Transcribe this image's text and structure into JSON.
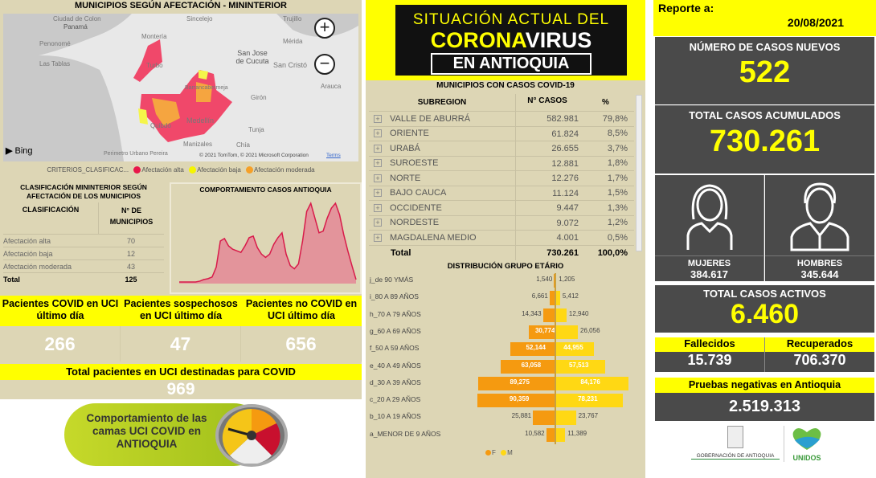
{
  "map": {
    "title": "MUNICIPIOS SEGÚN AFECTACIÓN - MININTERIOR",
    "labels": [
      "Ciudad de Colon",
      "Panamá",
      "Penonomé",
      "Las Tablas",
      "Sincelejo",
      "Montería",
      "Turbo",
      "San Jose de Cucuta",
      "San Cristó",
      "Mérida",
      "Trujillo",
      "Arauca",
      "Girón",
      "Tunja",
      "Quibdó",
      "Medellín",
      "Manizales",
      "Perimetro Urbano Pereira",
      "Chía",
      "Barrancabermeja"
    ],
    "attribution": "© 2021 TomTom, © 2021 Microsoft Corporation",
    "terms": "Terms",
    "bing": "Bing",
    "zoom_in": "+",
    "zoom_out": "−",
    "legend": {
      "title": "CRITERIOS_CLASIFICAC...",
      "items": [
        {
          "label": "Afectación alta",
          "color": "#e8174a"
        },
        {
          "label": "Afectación baja",
          "color": "#f5f500"
        },
        {
          "label": "Afectación moderada",
          "color": "#f5a028"
        }
      ]
    }
  },
  "classification": {
    "title": "CLASIFICACIÓN MININTERIOR SEGÚN AFECTACIÓN DE LOS MUNICIPIOS",
    "col1": "CLASIFICACIÓN",
    "col2": "N° DE MUNICIPIOS",
    "rows": [
      {
        "label": "Afectación alta",
        "value": "70"
      },
      {
        "label": "Afectación baja",
        "value": "12"
      },
      {
        "label": "Afectación moderada",
        "value": "43"
      }
    ],
    "total_label": "Total",
    "total": "125"
  },
  "chart_data": [
    {
      "type": "area",
      "title": "COMPORTAMIENTO CASOS ANTIOQUIA",
      "color": "#d81b4a",
      "values": [
        2,
        2,
        2,
        2,
        2,
        3,
        5,
        6,
        8,
        20,
        52,
        55,
        46,
        42,
        40,
        38,
        46,
        56,
        58,
        44,
        36,
        32,
        36,
        48,
        56,
        62,
        36,
        22,
        18,
        24,
        52,
        88,
        98,
        80,
        62,
        64,
        80,
        92,
        98,
        84,
        60,
        40,
        22,
        5
      ]
    },
    {
      "type": "bar",
      "title": "DISTRIBUCIÓN GRUPO ETÁRIO",
      "categories": [
        "j_de 90 YMÁS",
        "i_80 A 89 AÑOS",
        "h_70 A 79 AÑOS",
        "g_60 A 69 AÑOS",
        "f_50 A 59 AÑOS",
        "e_40 A 49 AÑOS",
        "d_30 A 39 AÑOS",
        "c_20 A 29 AÑOS",
        "b_10 A 19 AÑOS",
        "a_MENOR DE 9 AÑOS"
      ],
      "series": [
        {
          "name": "F",
          "color": "#f59a10",
          "values": [
            1540,
            6661,
            14343,
            30774,
            52144,
            63058,
            89275,
            90359,
            25881,
            10582
          ],
          "labels": [
            "1,540",
            "6,661",
            "14,343",
            "30,774",
            "52,144",
            "63,058",
            "89,275",
            "90,359",
            "25,881",
            "10,582"
          ]
        },
        {
          "name": "M",
          "color": "#ffd814",
          "values": [
            1205,
            5412,
            12940,
            26056,
            44955,
            57513,
            84176,
            78231,
            23767,
            11389
          ],
          "labels": [
            "1,205",
            "5,412",
            "12,940",
            "26,056",
            "44,955",
            "57,513",
            "84,176",
            "78,231",
            "23,767",
            "11,389"
          ]
        }
      ],
      "legend": "bottom"
    }
  ],
  "uci": {
    "headers": [
      "Pacientes COVID en UCI último día",
      "Pacientes sospechosos en UCI último día",
      "Pacientes no COVID en UCI último día"
    ],
    "values": [
      "266",
      "47",
      "656"
    ],
    "total_label": "Total pacientes en UCI destinadas para COVID",
    "total": "969",
    "banner": "Comportamiento de las camas UCI COVID en ANTIOQUIA"
  },
  "logo": {
    "line1": "SITUACIÓN ACTUAL DEL",
    "line2a": "CORONA",
    "line2b": "VIRUS",
    "line3": "EN ANTIOQUIA"
  },
  "municipios": {
    "title": "MUNICIPIOS CON CASOS COVID-19",
    "cols": [
      "SUBREGION",
      "N° CASOS",
      "%"
    ],
    "rows": [
      {
        "name": "VALLE DE ABURRÁ",
        "cases": "582.981",
        "pct": "79,8%"
      },
      {
        "name": "ORIENTE",
        "cases": "61.824",
        "pct": "8,5%"
      },
      {
        "name": "URABÁ",
        "cases": "26.655",
        "pct": "3,7%"
      },
      {
        "name": "SUROESTE",
        "cases": "12.881",
        "pct": "1,8%"
      },
      {
        "name": "NORTE",
        "cases": "12.276",
        "pct": "1,7%"
      },
      {
        "name": "BAJO CAUCA",
        "cases": "11.124",
        "pct": "1,5%"
      },
      {
        "name": "OCCIDENTE",
        "cases": "9.447",
        "pct": "1,3%"
      },
      {
        "name": "NORDESTE",
        "cases": "9.072",
        "pct": "1,2%"
      },
      {
        "name": "MAGDALENA MEDIO",
        "cases": "4.001",
        "pct": "0,5%"
      }
    ],
    "total_label": "Total",
    "total_cases": "730.261",
    "total_pct": "100,0%"
  },
  "report": {
    "label": "Reporte a:",
    "date": "20/08/2021",
    "new_label": "NÚMERO DE CASOS NUEVOS",
    "new": "522",
    "acc_label": "TOTAL CASOS ACUMULADOS",
    "acc": "730.261",
    "women_label": "MUJERES",
    "women": "384.617",
    "men_label": "HOMBRES",
    "men": "345.644",
    "active_label": "TOTAL CASOS ACTIVOS",
    "active": "6.460",
    "dead_label": "Fallecidos",
    "dead": "15.739",
    "rec_label": "Recuperados",
    "rec": "706.370",
    "neg_label": "Pruebas negativas en Antioquia",
    "neg": "2.519.313",
    "gob": "GOBERNACIÓN DE ANTIOQUIA",
    "unidos": "UNIDOS"
  }
}
